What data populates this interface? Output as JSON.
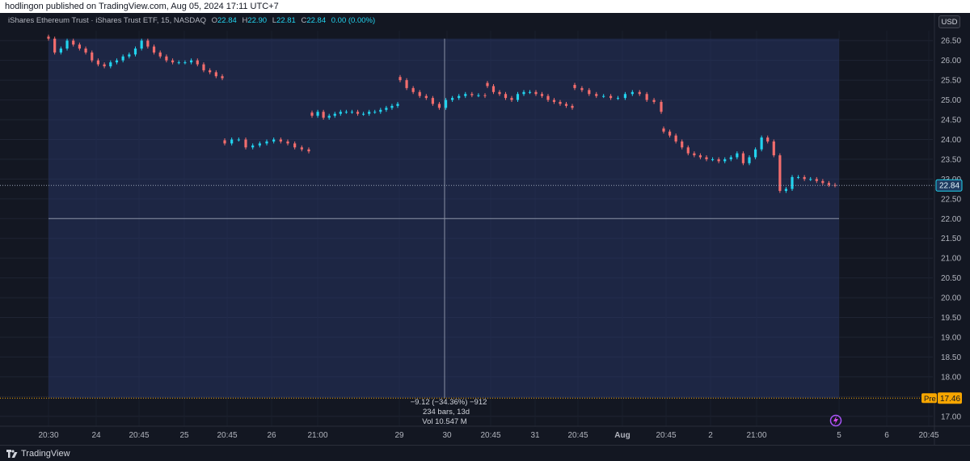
{
  "header": {
    "publisher_line": "hodlingon published on TradingView.com, Aug 05, 2024 17:11 UTC+7"
  },
  "legend": {
    "name": "iShares Ethereum Trust · iShares Trust ETF, 15, NASDAQ",
    "o_label": "O",
    "o_value": "22.84",
    "h_label": "H",
    "h_value": "22.90",
    "l_label": "L",
    "l_value": "22.81",
    "c_label": "C",
    "c_value": "22.84",
    "change": "0.00 (0.00%)"
  },
  "currency": "USD",
  "footer": {
    "brand": "TradingView"
  },
  "chart_data": {
    "type": "candlestick",
    "ylim": [
      16.75,
      26.75
    ],
    "y_ticks": [
      "26.50",
      "26.00",
      "25.50",
      "25.00",
      "24.50",
      "24.00",
      "23.50",
      "23.00",
      "22.50",
      "22.00",
      "21.50",
      "21.00",
      "20.50",
      "20.00",
      "19.50",
      "19.00",
      "18.50",
      "18.00",
      "17.50",
      "17.00"
    ],
    "x_ticks": [
      "20:30",
      "24",
      "20:45",
      "25",
      "20:45",
      "26",
      "21:00",
      "29",
      "30",
      "20:45",
      "31",
      "20:45",
      "Aug",
      "20:45",
      "2",
      "21:00",
      "5",
      "6",
      "20:45"
    ],
    "last_price_label": "22.84",
    "pre_label": "Pre",
    "pre_price_label": "17.46",
    "measure": {
      "line1": "−9.12 (−34.36%) −912",
      "line2": "234 bars, 13d",
      "line3": "Vol 10.547 M"
    },
    "up_color": "#22d3ee",
    "down_color": "#f26d6d",
    "segments": [
      {
        "closes": [
          26.55,
          26.2,
          26.3,
          26.5,
          26.4,
          26.3,
          26.2,
          26.0,
          25.9,
          25.85,
          25.95,
          26.0,
          26.1,
          26.15,
          26.3,
          26.5,
          26.35,
          26.2,
          26.1,
          26.0,
          25.95,
          25.95,
          25.95,
          26.0,
          25.9,
          25.75,
          25.7,
          25.6,
          25.55
        ]
      },
      {
        "closes": [
          23.9,
          24.0,
          24.0,
          23.8,
          23.85,
          23.9,
          23.95,
          24.0,
          23.95,
          23.9,
          23.8,
          23.75,
          23.7
        ]
      },
      {
        "closes": [
          24.6,
          24.7,
          24.55,
          24.6,
          24.65,
          24.7,
          24.7,
          24.7,
          24.65,
          24.65,
          24.7,
          24.7,
          24.75,
          24.8,
          24.85,
          24.9
        ]
      },
      {
        "closes": [
          25.5,
          25.3,
          25.2,
          25.1,
          25.05,
          24.9,
          24.8,
          25.0,
          25.05,
          25.1,
          25.15,
          25.12,
          25.12,
          25.1
        ]
      },
      {
        "closes": [
          25.35,
          25.2,
          25.15,
          25.05,
          25.0,
          25.15,
          25.2,
          25.2,
          25.15,
          25.1,
          25.0,
          24.95,
          24.9,
          24.85,
          24.8
        ]
      },
      {
        "closes": [
          25.3,
          25.25,
          25.15,
          25.1,
          25.1,
          25.05,
          25.05,
          25.15,
          25.2,
          25.15,
          25.0,
          24.95,
          24.7
        ]
      },
      {
        "closes": [
          24.2,
          24.1,
          23.95,
          23.8,
          23.65,
          23.6,
          23.55,
          23.5,
          23.5,
          23.45,
          23.5,
          23.55,
          23.65,
          23.4,
          23.55,
          23.75,
          24.05,
          23.95,
          23.6,
          22.7,
          22.75,
          23.05,
          23.05,
          23.0,
          23.0,
          22.95,
          22.9,
          22.85,
          22.84
        ]
      }
    ]
  }
}
